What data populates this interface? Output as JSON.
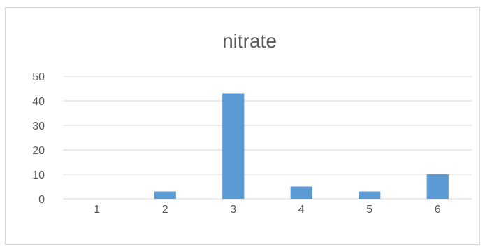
{
  "chart_data": {
    "type": "bar",
    "title": "nitrate",
    "categories": [
      "1",
      "2",
      "3",
      "4",
      "5",
      "6"
    ],
    "values": [
      0,
      3,
      43,
      5,
      3,
      10
    ],
    "ylim": [
      0,
      50
    ],
    "yticks": [
      0,
      10,
      20,
      30,
      40,
      50
    ],
    "xlabel": "",
    "ylabel": "",
    "grid": true,
    "legend": "none",
    "bar_color": "#5b9bd5",
    "grid_color": "#d9d9d9",
    "text_color": "#595959"
  }
}
